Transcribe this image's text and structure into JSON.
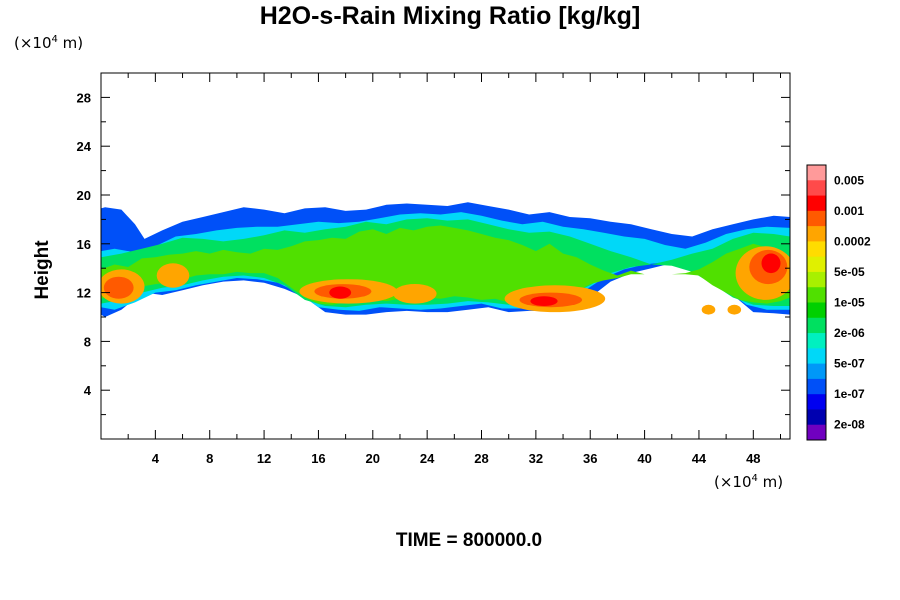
{
  "chart_data": {
    "type": "heatmap",
    "title": "H2O-s-Rain Mixing Ratio [kg/kg]",
    "ylabel": "Height",
    "xlabel": "",
    "x_unit": {
      "prefix": "(×10",
      "exp": "4",
      "suffix": " m)"
    },
    "y_unit": {
      "prefix": "(×10",
      "exp": "4",
      "suffix": " m)"
    },
    "xlim": [
      0,
      50.7
    ],
    "ylim": [
      0,
      30
    ],
    "x_ticks": [
      4,
      8,
      12,
      16,
      20,
      24,
      28,
      32,
      36,
      40,
      44,
      48
    ],
    "y_ticks": [
      4,
      8,
      12,
      16,
      20,
      24,
      28
    ],
    "footer": "TIME = 800000.0",
    "colorbar": {
      "colors": [
        "#ff9a9a",
        "#ff4a4a",
        "#ff0000",
        "#ff5a00",
        "#ffa500",
        "#ffdc00",
        "#e0f000",
        "#a8f000",
        "#50e000",
        "#00d000",
        "#00e060",
        "#00f0c0",
        "#00d8f8",
        "#0098f8",
        "#0050f8",
        "#0000f0",
        "#0000b0",
        "#7000c0"
      ],
      "labels": [
        "0.005",
        "0.001",
        "0.0002",
        "5e-05",
        "1e-05",
        "2e-06",
        "5e-07",
        "1e-07",
        "2e-08"
      ]
    },
    "field_levels": [
      {
        "level": "1e-07",
        "color": "#0050f8",
        "x": [
          0,
          0.3,
          1.5,
          2.5,
          3.2,
          4.5,
          6,
          7.5,
          9,
          10.5,
          12,
          13.5,
          15,
          16.5,
          18,
          19.5,
          21,
          22.5,
          24,
          25.5,
          27,
          28.5,
          30,
          31.5,
          33,
          34.5,
          36,
          37.5,
          39,
          40.5,
          42,
          43.5,
          45,
          46.5,
          48,
          49.5,
          50.7
        ],
        "top": [
          18.9,
          19,
          18.8,
          17.6,
          16.4,
          17.1,
          17.8,
          18.2,
          18.6,
          19,
          18.8,
          18.5,
          18.9,
          19,
          18.7,
          18.8,
          19.2,
          19.3,
          19.2,
          19.1,
          19.4,
          19.1,
          18.8,
          18.4,
          18.6,
          18.2,
          18.1,
          17.8,
          17.6,
          17.2,
          16.8,
          16.6,
          17.2,
          17.6,
          18,
          18.3,
          18.2
        ],
        "bottom": [
          10.2,
          10,
          10.6,
          11.5,
          12,
          11.8,
          12.2,
          12.6,
          12.9,
          13,
          12.8,
          12.3,
          11.6,
          10.4,
          10.2,
          10.2,
          10.4,
          10.5,
          10.4,
          10.4,
          10.6,
          10.8,
          10.4,
          10.5,
          10.5,
          10.8,
          11.6,
          12.9,
          13.6,
          14,
          14.4,
          13.8,
          13.2,
          11.8,
          10.4,
          10.3,
          10.2
        ]
      },
      {
        "level": "5e-07",
        "color": "#00d8f8",
        "x": [
          0,
          1,
          2.5,
          4,
          5.5,
          7,
          8.5,
          10,
          11.5,
          13,
          14.5,
          16,
          17.5,
          19,
          20.5,
          22,
          23.5,
          25,
          26.5,
          28,
          29.5,
          31,
          32.5,
          34,
          35.5,
          37,
          38.5,
          40,
          41.5,
          43,
          44.5,
          46,
          47.5,
          49,
          50.7
        ],
        "top": [
          15.4,
          15.6,
          15.3,
          15.8,
          16.6,
          16.8,
          17.1,
          17.3,
          17.4,
          17.4,
          17.6,
          17.8,
          17.7,
          17.8,
          18.1,
          18.4,
          18.5,
          18.4,
          18.6,
          18.3,
          17.9,
          17.6,
          17.8,
          17.4,
          17.2,
          16.9,
          16.6,
          16.4,
          15.9,
          15.6,
          16.1,
          16.8,
          17.2,
          17.4,
          17.3
        ],
        "bottom": [
          10.8,
          10.6,
          11.2,
          12,
          12.2,
          12.6,
          12.9,
          13.2,
          13.1,
          12.8,
          12,
          10.8,
          10.6,
          10.5,
          10.8,
          10.7,
          10.6,
          10.7,
          10.9,
          11.1,
          10.7,
          10.7,
          10.9,
          11.2,
          12.1,
          13.2,
          13.9,
          14.3,
          14.5,
          14.1,
          13.4,
          12.2,
          11,
          10.6,
          10.6
        ]
      },
      {
        "level": "2e-06",
        "color": "#00e060",
        "x": [
          0,
          1.5,
          3,
          4.5,
          6,
          7.5,
          9,
          10.5,
          12,
          13.5,
          15,
          16.5,
          18,
          19.5,
          21,
          22.5,
          24,
          25.5,
          27,
          28.5,
          30,
          31.5,
          33,
          34.5,
          36,
          37.5,
          39,
          40.5,
          42,
          43.5,
          45,
          46.5,
          48,
          49.5,
          50.7
        ],
        "top": [
          14.9,
          15.2,
          15.6,
          16,
          16.5,
          16.4,
          16.2,
          16.4,
          16.7,
          17.1,
          16.9,
          17.2,
          17.4,
          17.8,
          17.6,
          18,
          18.1,
          17.9,
          18,
          17.6,
          17.2,
          16.9,
          17,
          16.6,
          16,
          15.4,
          14.9,
          14.3,
          14.7,
          15.2,
          15.6,
          16.4,
          16.9,
          16.8,
          16.6
        ],
        "bottom": [
          11.1,
          11.4,
          12,
          12.4,
          12.6,
          13,
          13.3,
          13.4,
          13.2,
          12.6,
          11.4,
          10.9,
          10.8,
          11,
          11.1,
          11,
          11,
          11.1,
          11.3,
          11.2,
          11,
          11.1,
          11.4,
          11.8,
          12.6,
          13.6,
          14.1,
          14.3,
          14.2,
          13.7,
          12.7,
          11.6,
          11,
          10.9,
          10.9
        ]
      },
      {
        "level": "1e-05",
        "color": "#50e000",
        "x": [
          0,
          1,
          2,
          3,
          4,
          5,
          6,
          7,
          8,
          9,
          10,
          11,
          12,
          13,
          14,
          15,
          16,
          17,
          18,
          19,
          20,
          21,
          22,
          23,
          24,
          25,
          26,
          27,
          28,
          29,
          30,
          31,
          32,
          33,
          34,
          35,
          36,
          37,
          38,
          39,
          40,
          41,
          42,
          43,
          44,
          45,
          46,
          47,
          48,
          49,
          50,
          50.7
        ],
        "top": [
          13.9,
          14.3,
          14.1,
          14.8,
          14.9,
          15.1,
          15.2,
          15.4,
          15.2,
          15.5,
          15.3,
          15.2,
          15.6,
          15.5,
          15.8,
          16.2,
          16.3,
          16.5,
          16.4,
          17,
          17.2,
          16.8,
          17.3,
          17.1,
          17.4,
          17.5,
          17.3,
          17.1,
          16.8,
          16.5,
          16.3,
          15.9,
          15.4,
          16,
          15.2,
          14.9,
          14.3,
          13.8,
          13.4,
          13.8,
          13.5,
          13.5,
          13.5,
          13.6,
          13.9,
          14.5,
          15.2,
          15.6,
          16,
          15.7,
          14.6,
          13.8
        ],
        "bottom": [
          11.5,
          11.8,
          12.2,
          12.5,
          12.7,
          12.8,
          13.1,
          13.4,
          13.5,
          13.5,
          13.7,
          13.6,
          13.6,
          13.2,
          12.4,
          11.6,
          11.1,
          11,
          11.2,
          11.5,
          11.4,
          11.3,
          11.5,
          11.4,
          11.6,
          11.5,
          11.7,
          11.6,
          11.4,
          11.5,
          11.2,
          11.3,
          11.5,
          11.6,
          11.9,
          12.1,
          12.7,
          13,
          13.2,
          13.5,
          13.5,
          13.5,
          13.5,
          13.5,
          13.4,
          12.6,
          12,
          11.4,
          11.2,
          11.1,
          11.3,
          11.6
        ]
      }
    ],
    "heavy_cells": [
      {
        "color": "#ffa500",
        "x": 1.5,
        "y": 12.5,
        "rx": 1.7,
        "ry": 1.4
      },
      {
        "color": "#ffa500",
        "x": 5.3,
        "y": 13.4,
        "rx": 1.2,
        "ry": 1
      },
      {
        "color": "#ffa500",
        "x": 18.2,
        "y": 12.1,
        "rx": 3.6,
        "ry": 1
      },
      {
        "color": "#ffa500",
        "x": 23.1,
        "y": 11.9,
        "rx": 1.6,
        "ry": 0.8
      },
      {
        "color": "#ffa500",
        "x": 33.4,
        "y": 11.5,
        "rx": 3.7,
        "ry": 1.1
      },
      {
        "color": "#ffa500",
        "x": 48.9,
        "y": 13.6,
        "rx": 2.2,
        "ry": 2.2
      },
      {
        "color": "#ffa500",
        "x": 44.7,
        "y": 10.6,
        "rx": 0.5,
        "ry": 0.4
      },
      {
        "color": "#ffa500",
        "x": 46.6,
        "y": 10.6,
        "rx": 0.5,
        "ry": 0.4
      },
      {
        "color": "#ff5a00",
        "x": 1.3,
        "y": 12.4,
        "rx": 1.1,
        "ry": 0.9
      },
      {
        "color": "#ff5a00",
        "x": 17.8,
        "y": 12.1,
        "rx": 2.1,
        "ry": 0.6
      },
      {
        "color": "#ff5a00",
        "x": 33.1,
        "y": 11.4,
        "rx": 2.3,
        "ry": 0.6
      },
      {
        "color": "#ff5a00",
        "x": 49.1,
        "y": 14.1,
        "rx": 1.4,
        "ry": 1.4
      },
      {
        "color": "#ff0000",
        "x": 17.6,
        "y": 12,
        "rx": 0.8,
        "ry": 0.5
      },
      {
        "color": "#ff0000",
        "x": 32.6,
        "y": 11.3,
        "rx": 1,
        "ry": 0.4
      },
      {
        "color": "#ff0000",
        "x": 49.3,
        "y": 14.4,
        "rx": 0.7,
        "ry": 0.8
      }
    ]
  }
}
